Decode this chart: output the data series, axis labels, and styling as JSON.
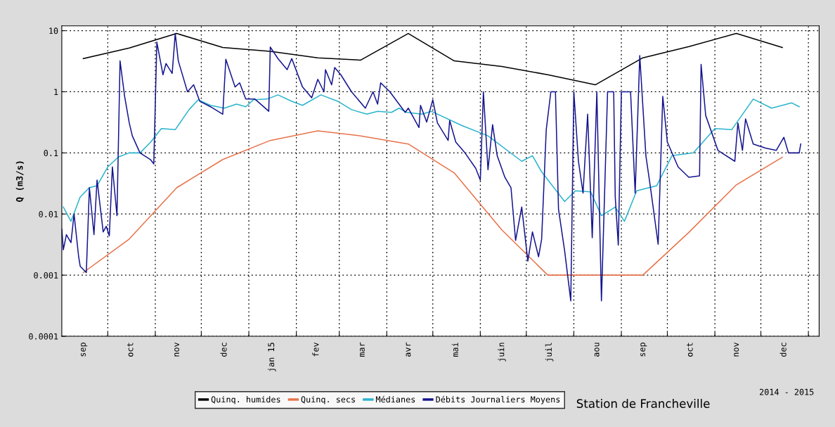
{
  "chart_data": {
    "type": "line",
    "ylabel": "Q (m3/s)",
    "annotations": [
      "Station de Francheville",
      "2014 - 2015"
    ],
    "log": "y",
    "grid": true,
    "legend": "bottom",
    "marker": "none",
    "line_style": "solid",
    "xlim": [
      "2014-09-01",
      "2016-01-08"
    ],
    "ylim": [
      0.0001,
      12
    ],
    "yticks": [
      0.0001,
      0.001,
      0.01,
      0.1,
      1,
      10
    ],
    "xticks": [
      {
        "value": "2014-09-15",
        "label": "sep"
      },
      {
        "value": "2014-10-01",
        "label": null
      },
      {
        "value": "2014-10-16",
        "label": "oct"
      },
      {
        "value": "2014-11-01",
        "label": null
      },
      {
        "value": "2014-11-15",
        "label": "nov"
      },
      {
        "value": "2014-12-01",
        "label": null
      },
      {
        "value": "2014-12-16",
        "label": "dec"
      },
      {
        "value": "2015-01-01",
        "label": null
      },
      {
        "value": "2015-01-16",
        "label": "jan 15"
      },
      {
        "value": "2015-02-01",
        "label": null
      },
      {
        "value": "2015-02-14",
        "label": "fev"
      },
      {
        "value": "2015-03-01",
        "label": null
      },
      {
        "value": "2015-03-16",
        "label": "mar"
      },
      {
        "value": "2015-04-01",
        "label": null
      },
      {
        "value": "2015-04-15",
        "label": "avr"
      },
      {
        "value": "2015-05-01",
        "label": null
      },
      {
        "value": "2015-05-16",
        "label": "mai"
      },
      {
        "value": "2015-06-01",
        "label": null
      },
      {
        "value": "2015-06-15",
        "label": "juin"
      },
      {
        "value": "2015-07-01",
        "label": null
      },
      {
        "value": "2015-07-16",
        "label": "juil"
      },
      {
        "value": "2015-08-01",
        "label": null
      },
      {
        "value": "2015-08-16",
        "label": "aou"
      },
      {
        "value": "2015-09-01",
        "label": null
      },
      {
        "value": "2015-09-15",
        "label": "sep"
      },
      {
        "value": "2015-10-01",
        "label": null
      },
      {
        "value": "2015-10-16",
        "label": "oct"
      },
      {
        "value": "2015-11-01",
        "label": null
      },
      {
        "value": "2015-11-15",
        "label": "nov"
      },
      {
        "value": "2015-12-01",
        "label": null
      },
      {
        "value": "2015-12-16",
        "label": "dec"
      },
      {
        "value": "2016-01-01",
        "label": null
      }
    ],
    "series": [
      {
        "name": "Quinq. humides",
        "color": "#000000",
        "x": [
          "2014-09-15",
          "2014-10-15",
          "2014-11-15",
          "2014-12-15",
          "2015-01-15",
          "2015-02-15",
          "2015-03-15",
          "2015-04-15",
          "2015-05-15",
          "2015-06-15",
          "2015-07-15",
          "2015-08-15",
          "2015-09-15",
          "2015-10-15",
          "2015-11-15",
          "2015-12-15"
        ],
        "values": [
          3.5,
          5.2,
          9.0,
          5.3,
          4.6,
          3.6,
          3.3,
          9.0,
          3.2,
          2.6,
          1.9,
          1.3,
          3.6,
          5.5,
          9.0,
          5.3
        ]
      },
      {
        "name": "Quinq. secs",
        "color": "#e8734a",
        "x": [
          "2014-09-15",
          "2014-10-15",
          "2014-11-15",
          "2014-12-15",
          "2015-01-15",
          "2015-02-15",
          "2015-03-15",
          "2015-04-15",
          "2015-05-15",
          "2015-06-15",
          "2015-07-15",
          "2015-08-15",
          "2015-09-15",
          "2015-10-15",
          "2015-11-15",
          "2015-12-15"
        ],
        "values": [
          0.0011,
          0.0039,
          0.027,
          0.078,
          0.16,
          0.23,
          0.19,
          0.14,
          0.047,
          0.0055,
          0.001,
          0.001,
          0.001,
          0.005,
          0.03,
          0.085
        ]
      },
      {
        "name": "Médianes",
        "color": "#2ab4cc",
        "x": [
          "2014-09-02",
          "2014-09-07",
          "2014-09-13",
          "2014-09-19",
          "2014-09-24",
          "2014-10-01",
          "2014-10-08",
          "2014-10-15",
          "2014-10-22",
          "2014-10-29",
          "2014-11-05",
          "2014-11-14",
          "2014-11-23",
          "2014-11-29",
          "2014-12-07",
          "2014-12-16",
          "2014-12-24",
          "2014-12-30",
          "2015-01-04",
          "2015-01-13",
          "2015-01-20",
          "2015-01-29",
          "2015-02-05",
          "2015-02-17",
          "2015-02-28",
          "2015-03-09",
          "2015-03-19",
          "2015-03-26",
          "2015-04-04",
          "2015-04-09",
          "2015-04-14",
          "2015-04-24",
          "2015-04-30",
          "2015-05-20",
          "2015-06-06",
          "2015-06-28",
          "2015-07-05",
          "2015-07-11",
          "2015-07-26",
          "2015-08-02",
          "2015-08-12",
          "2015-08-19",
          "2015-08-28",
          "2015-09-03",
          "2015-09-11",
          "2015-09-24",
          "2015-10-04",
          "2015-10-18",
          "2015-11-01",
          "2015-11-12",
          "2015-11-26",
          "2015-12-08",
          "2015-12-21",
          "2015-12-26"
        ],
        "values": [
          0.013,
          0.0076,
          0.019,
          0.027,
          0.029,
          0.059,
          0.086,
          0.1,
          0.1,
          0.15,
          0.25,
          0.24,
          0.51,
          0.74,
          0.6,
          0.54,
          0.63,
          0.57,
          0.74,
          0.76,
          0.89,
          0.7,
          0.6,
          0.89,
          0.7,
          0.51,
          0.43,
          0.48,
          0.46,
          0.54,
          0.46,
          0.43,
          0.48,
          0.28,
          0.19,
          0.073,
          0.09,
          0.049,
          0.016,
          0.024,
          0.023,
          0.0094,
          0.013,
          0.0076,
          0.024,
          0.029,
          0.09,
          0.1,
          0.25,
          0.24,
          0.76,
          0.54,
          0.66,
          0.57
        ]
      },
      {
        "name": "Débits Journaliers Moyens",
        "color": "#14148f",
        "x": [
          "2014-09-01",
          "2014-09-02",
          "2014-09-04",
          "2014-09-07",
          "2014-09-09",
          "2014-09-12",
          "2014-09-13",
          "2014-09-17",
          "2014-09-19",
          "2014-09-22",
          "2014-09-24",
          "2014-09-28",
          "2014-09-30",
          "2014-10-02",
          "2014-10-04",
          "2014-10-07",
          "2014-10-09",
          "2014-10-12",
          "2014-10-15",
          "2014-10-17",
          "2014-10-22",
          "2014-10-29",
          "2014-10-31",
          "2014-11-02",
          "2014-11-06",
          "2014-11-08",
          "2014-11-12",
          "2014-11-14",
          "2014-11-16",
          "2014-11-22",
          "2014-11-26",
          "2014-11-30",
          "2014-12-07",
          "2014-12-15",
          "2014-12-17",
          "2014-12-23",
          "2014-12-26",
          "2014-12-30",
          "2015-01-05",
          "2015-01-14",
          "2015-01-15",
          "2015-01-20",
          "2015-01-26",
          "2015-01-29",
          "2015-02-05",
          "2015-02-11",
          "2015-02-15",
          "2015-02-19",
          "2015-02-20",
          "2015-02-24",
          "2015-02-26",
          "2015-03-02",
          "2015-03-09",
          "2015-03-18",
          "2015-03-23",
          "2015-03-26",
          "2015-03-28",
          "2015-04-03",
          "2015-04-13",
          "2015-04-15",
          "2015-04-22",
          "2015-04-23",
          "2015-04-27",
          "2015-05-01",
          "2015-05-04",
          "2015-05-11",
          "2015-05-12",
          "2015-05-16",
          "2015-05-22",
          "2015-05-29",
          "2015-06-01",
          "2015-06-03",
          "2015-06-06",
          "2015-06-09",
          "2015-06-12",
          "2015-06-17",
          "2015-06-21",
          "2015-06-24",
          "2015-06-28",
          "2015-07-02",
          "2015-07-05",
          "2015-07-09",
          "2015-07-11",
          "2015-07-14",
          "2015-07-17",
          "2015-07-20",
          "2015-07-22",
          "2015-07-26",
          "2015-07-30",
          "2015-08-01",
          "2015-08-04",
          "2015-08-07",
          "2015-08-10",
          "2015-08-13",
          "2015-08-16",
          "2015-08-19",
          "2015-08-23",
          "2015-08-27",
          "2015-08-28",
          "2015-08-30",
          "2015-09-01",
          "2015-09-07",
          "2015-09-10",
          "2015-09-13",
          "2015-09-17",
          "2015-09-20",
          "2015-09-25",
          "2015-09-28",
          "2015-10-01",
          "2015-10-08",
          "2015-10-15",
          "2015-10-22",
          "2015-10-23",
          "2015-10-26",
          "2015-11-03",
          "2015-11-14",
          "2015-11-16",
          "2015-11-19",
          "2015-11-21",
          "2015-11-26",
          "2015-12-04",
          "2015-12-11",
          "2015-12-16",
          "2015-12-19",
          "2015-12-26",
          "2015-12-27"
        ],
        "values": [
          0.0057,
          0.0026,
          0.0046,
          0.0034,
          0.01,
          0.002,
          0.0014,
          0.0011,
          0.027,
          0.0046,
          0.036,
          0.0051,
          0.0063,
          0.0044,
          0.059,
          0.0094,
          3.2,
          0.84,
          0.31,
          0.19,
          0.1,
          0.077,
          0.066,
          6.5,
          1.9,
          2.9,
          2.0,
          9.0,
          3.2,
          1.0,
          1.3,
          0.7,
          0.57,
          0.43,
          3.4,
          1.2,
          1.4,
          0.76,
          0.76,
          0.48,
          5.4,
          3.5,
          2.3,
          3.5,
          1.2,
          0.8,
          1.6,
          1.0,
          2.3,
          1.3,
          2.5,
          1.9,
          1.0,
          0.54,
          1.0,
          0.63,
          1.4,
          1.0,
          0.46,
          0.54,
          0.26,
          0.6,
          0.32,
          0.74,
          0.31,
          0.16,
          0.34,
          0.15,
          0.1,
          0.056,
          0.036,
          1.0,
          0.053,
          0.29,
          0.09,
          0.04,
          0.027,
          0.0037,
          0.013,
          0.0017,
          0.0051,
          0.002,
          0.0039,
          0.24,
          1.0,
          1.0,
          0.012,
          0.0025,
          0.00038,
          1.0,
          0.073,
          0.022,
          0.43,
          0.0041,
          1.0,
          0.00038,
          1.0,
          1.0,
          0.019,
          0.0031,
          1.0,
          1.0,
          0.022,
          3.9,
          0.09,
          0.027,
          0.0032,
          0.84,
          0.15,
          0.059,
          0.04,
          0.042,
          2.8,
          0.41,
          0.11,
          0.073,
          0.31,
          0.11,
          0.36,
          0.14,
          0.12,
          0.11,
          0.18,
          0.1,
          0.1,
          0.14
        ]
      }
    ]
  }
}
